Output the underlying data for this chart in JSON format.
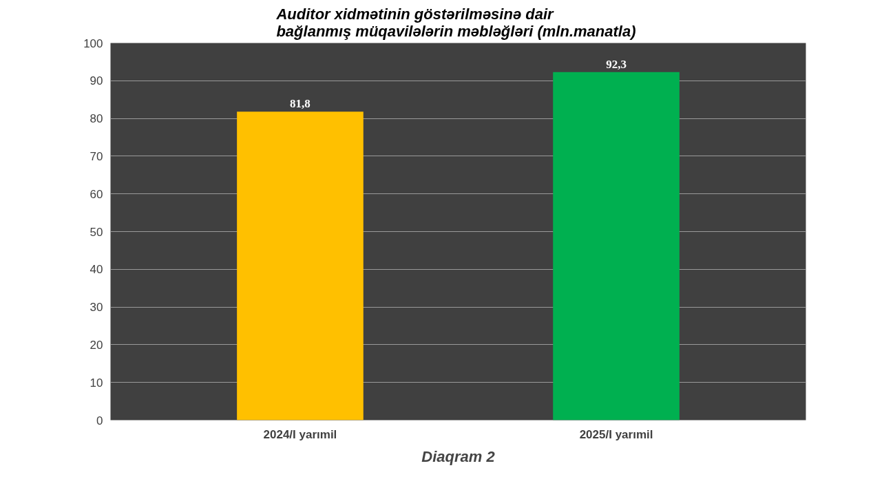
{
  "chart_data": {
    "type": "bar",
    "title": "Auditor xidmətinin göstərilməsinə dair\nbağlanmış müqavilələrin  məbləğləri (mln.manatla)",
    "categories": [
      "2024/I yarımil",
      "2025/I yarımil"
    ],
    "series": [
      {
        "colors": [
          "#ffc000",
          "#00b050"
        ],
        "values": [
          81.8,
          92.3
        ],
        "value_labels": [
          "81,8",
          "92,3"
        ]
      }
    ],
    "ylim": [
      0,
      100
    ],
    "yticks": [
      0,
      10,
      20,
      30,
      40,
      50,
      60,
      70,
      80,
      90,
      100
    ],
    "grid": "y",
    "annotations": [
      "Diaqram 2"
    ]
  }
}
